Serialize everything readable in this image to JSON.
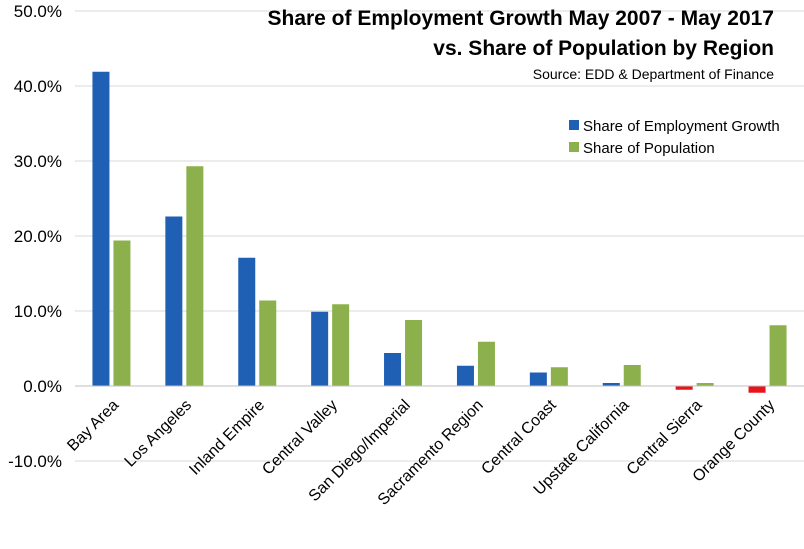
{
  "chart_data": {
    "type": "bar",
    "title_line1": "Share of Employment Growth May 2007 - May 2017",
    "title_line2": "vs. Share of Population by Region",
    "source": "Source:  EDD & Department of Finance",
    "categories": [
      "Bay Area",
      "Los Angeles",
      "Inland Empire",
      "Central Valley",
      "San Diego/Imperial",
      "Sacramento Region",
      "Central Coast",
      "Upstate California",
      "Central Sierra",
      "Orange County"
    ],
    "series": [
      {
        "name": "Share of Employment Growth",
        "color": "#1F5FB4",
        "values": [
          41.9,
          22.6,
          17.1,
          9.9,
          4.4,
          2.7,
          1.8,
          0.4,
          -0.5,
          -0.9
        ]
      },
      {
        "name": "Share of Population",
        "color": "#8CB04C",
        "values": [
          19.4,
          29.3,
          11.4,
          10.9,
          8.8,
          5.9,
          2.5,
          2.8,
          0.4,
          8.1
        ]
      }
    ],
    "negative_color": "#E8141C",
    "ylim": [
      -10,
      50
    ],
    "yticks": [
      -10,
      0,
      10,
      20,
      30,
      40,
      50
    ],
    "ytick_labels": [
      "-10.0%",
      "0.0%",
      "10.0%",
      "20.0%",
      "30.0%",
      "40.0%",
      "50.0%"
    ],
    "grid": true,
    "legend_position": "top-right"
  }
}
